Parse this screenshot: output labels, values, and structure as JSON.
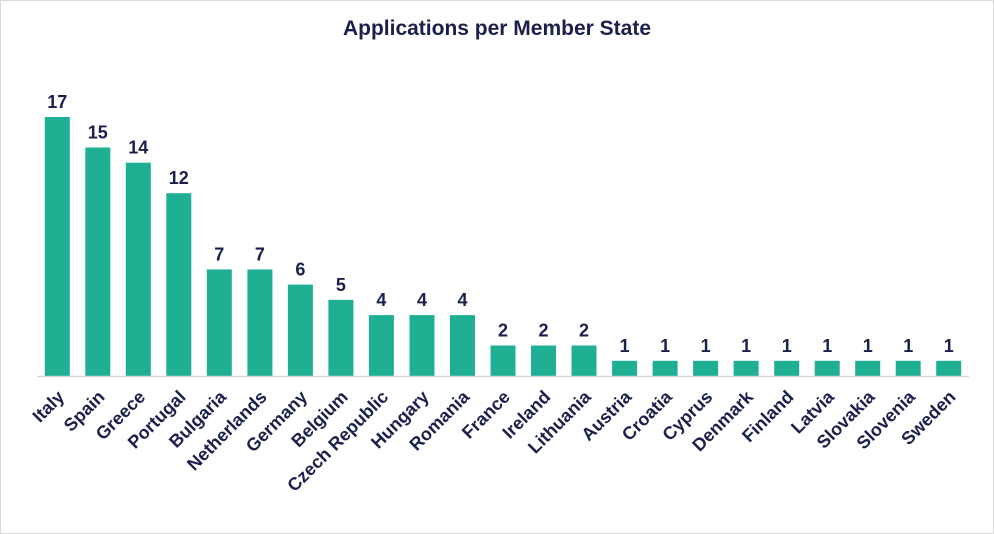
{
  "chart_data": {
    "type": "bar",
    "title": "Applications per Member State",
    "categories": [
      "Italy",
      "Spain",
      "Greece",
      "Portugal",
      "Bulgaria",
      "Netherlands",
      "Germany",
      "Belgium",
      "Czech Republic",
      "Hungary",
      "Romania",
      "France",
      "Ireland",
      "Lithuania",
      "Austria",
      "Croatia",
      "Cyprus",
      "Denmark",
      "Finland",
      "Latvia",
      "Slovakia",
      "Slovenia",
      "Sweden"
    ],
    "values": [
      17,
      15,
      14,
      12,
      7,
      7,
      6,
      5,
      4,
      4,
      4,
      2,
      2,
      2,
      1,
      1,
      1,
      1,
      1,
      1,
      1,
      1,
      1
    ],
    "ylim": [
      0,
      17
    ],
    "grid": false,
    "legend": "none",
    "bar_color": "#1fb094",
    "text_color": "#1b1f4b",
    "axis_color": "#d9d9d9"
  }
}
